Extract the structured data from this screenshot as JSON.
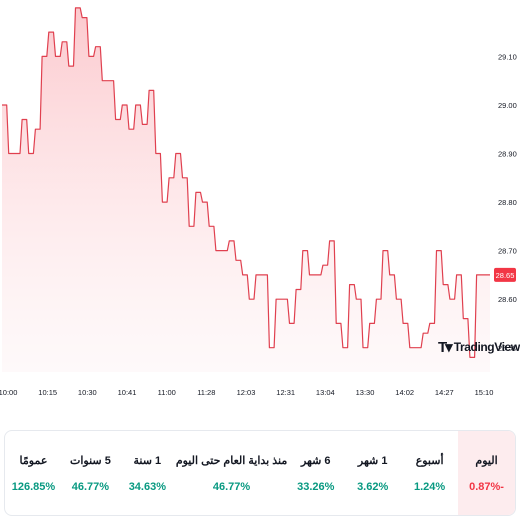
{
  "chart_data": {
    "type": "area",
    "x_ticks": [
      "10:00",
      "10:15",
      "10:30",
      "10:41",
      "11:00",
      "11:28",
      "12:03",
      "12:31",
      "13:04",
      "13:30",
      "14:02",
      "14:27",
      "15:10"
    ],
    "y_ticks": [
      "28.50",
      "28.60",
      "28.70",
      "28.80",
      "28.90",
      "29.00",
      "29.10"
    ],
    "ylim": [
      28.45,
      29.175
    ],
    "current_value": "28.65",
    "series": [
      {
        "values": [
          29.0,
          28.9,
          28.9,
          28.97,
          28.9,
          28.95,
          29.1,
          29.15,
          29.1,
          29.13,
          29.08,
          29.2,
          29.18,
          29.1,
          29.12,
          29.05,
          29.05,
          28.97,
          29.0,
          28.95,
          29.0,
          28.96,
          29.03,
          28.9,
          28.8,
          28.85,
          28.9,
          28.85,
          28.75,
          28.82,
          28.8,
          28.75,
          28.7,
          28.7,
          28.72,
          28.68,
          28.65,
          28.6,
          28.65,
          28.65,
          28.5,
          28.6,
          28.6,
          28.55,
          28.62,
          28.7,
          28.65,
          28.65,
          28.67,
          28.72,
          28.55,
          28.5,
          28.63,
          28.6,
          28.5,
          28.55,
          28.6,
          28.7,
          28.65,
          28.6,
          28.55,
          28.5,
          28.5,
          28.53,
          28.55,
          28.7,
          28.63,
          28.6,
          28.65,
          28.56,
          28.48,
          28.65,
          28.65
        ]
      }
    ],
    "colors": {
      "line": "#e0404f",
      "fill": "#fbc6cb",
      "tag": "#f23645"
    }
  },
  "brand": {
    "name": "TradingView",
    "icon": "tradingview-logo"
  },
  "periods": [
    {
      "label": "عمومًا",
      "value": "126.85%",
      "trend": "pos"
    },
    {
      "label": "5 سنوات",
      "value": "46.77%",
      "trend": "pos"
    },
    {
      "label": "1 سنة",
      "value": "34.63%",
      "trend": "pos"
    },
    {
      "label": "منذ بداية العام حتى اليوم",
      "value": "46.77%",
      "trend": "pos"
    },
    {
      "label": "6 شهر",
      "value": "33.26%",
      "trend": "pos"
    },
    {
      "label": "1 شهر",
      "value": "3.62%",
      "trend": "pos"
    },
    {
      "label": "أسبوع",
      "value": "1.24%",
      "trend": "pos"
    },
    {
      "label": "اليوم",
      "value": "0.87%-",
      "trend": "neg",
      "active": true
    }
  ]
}
